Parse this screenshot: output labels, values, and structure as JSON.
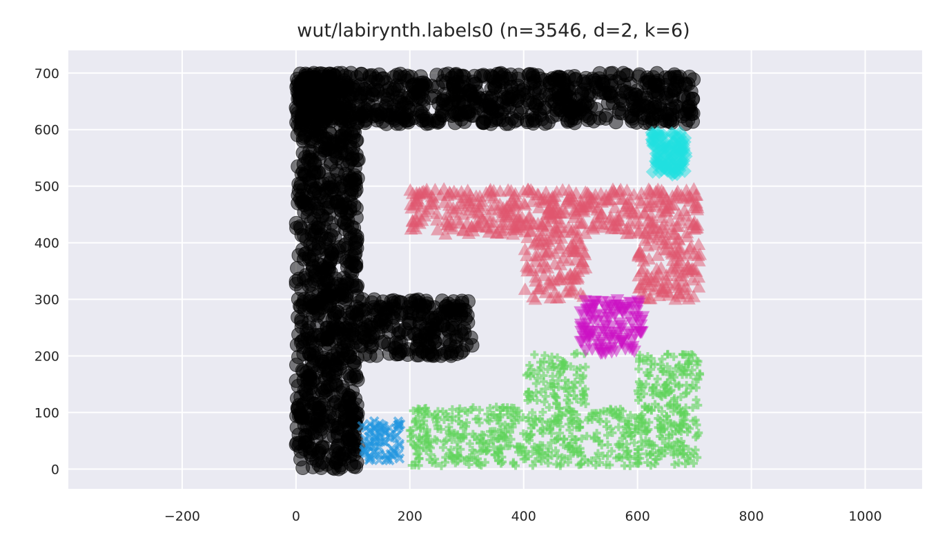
{
  "chart_data": {
    "type": "scatter",
    "title": "wut/labirynth.labels0 (n=3546, d=2, k=6)",
    "xlabel": "",
    "ylabel": "",
    "xlim": [
      -400,
      1100
    ],
    "ylim": [
      -35,
      740
    ],
    "x_ticks": [
      -200,
      0,
      200,
      400,
      600,
      800,
      1000
    ],
    "y_ticks": [
      0,
      100,
      200,
      300,
      400,
      500,
      600,
      700
    ],
    "x_tick_labels": [
      "−200",
      "0",
      "200",
      "400",
      "600",
      "800",
      "1000"
    ],
    "y_tick_labels": [
      "0",
      "100",
      "200",
      "300",
      "400",
      "500",
      "600",
      "700"
    ],
    "grid": true,
    "legend": "none",
    "background": "#eaeaf2",
    "series": [
      {
        "marker": "circle",
        "color": "#000000",
        "count": 1850,
        "regions": [
          [
            0,
            110,
            0,
            700
          ],
          [
            0,
            700,
            610,
            700
          ],
          [
            110,
            310,
            200,
            300
          ]
        ]
      },
      {
        "marker": "x",
        "color": "#2196e0",
        "count": 70,
        "regions": [
          [
            115,
            185,
            15,
            85
          ]
        ]
      },
      {
        "marker": "plus",
        "color": "#5fd35a",
        "count": 780,
        "regions": [
          [
            200,
            710,
            5,
            110
          ],
          [
            400,
            510,
            110,
            205
          ],
          [
            600,
            710,
            110,
            205
          ]
        ]
      },
      {
        "marker": "triangle-up",
        "color": "#e0566e",
        "count": 620,
        "regions": [
          [
            200,
            710,
            415,
            495
          ],
          [
            400,
            510,
            300,
            415
          ],
          [
            600,
            710,
            300,
            415
          ]
        ]
      },
      {
        "marker": "triangle-down",
        "color": "#cc10c4",
        "count": 120,
        "regions": [
          [
            500,
            610,
            205,
            300
          ]
        ]
      },
      {
        "marker": "diamond",
        "color": "#20e0e0",
        "count": 106,
        "regions": [
          [
            625,
            685,
            520,
            595
          ]
        ]
      }
    ]
  }
}
